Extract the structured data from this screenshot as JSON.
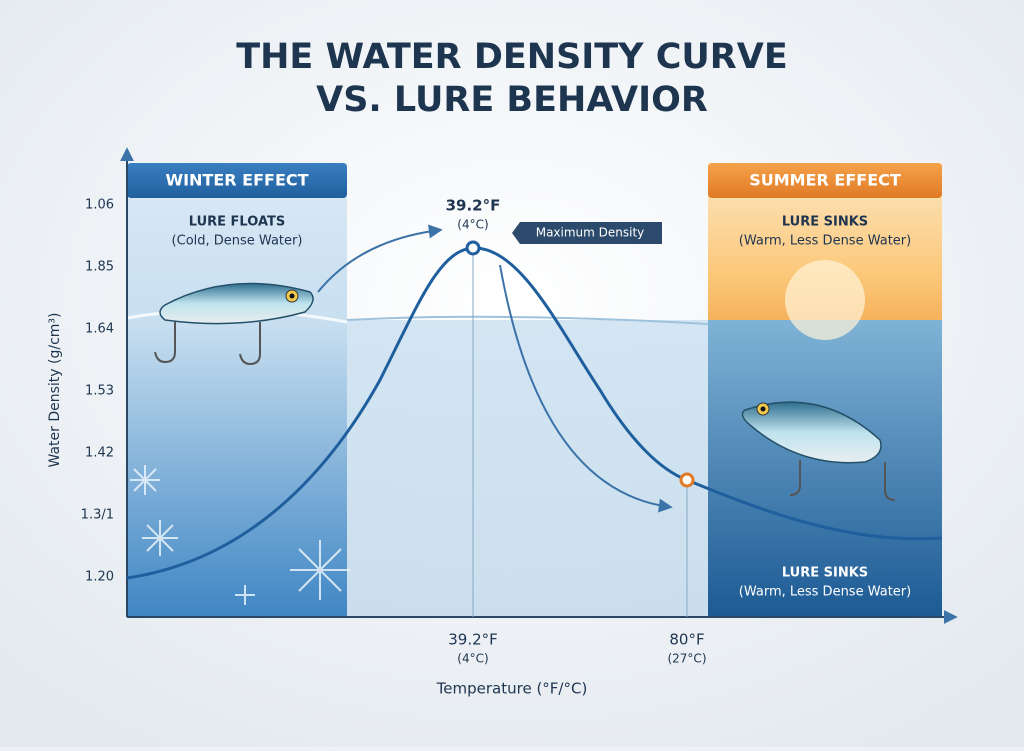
{
  "chart_data": {
    "type": "line",
    "title": [
      "THE WATER DENSITY CURVE",
      "VS. LURE BEHAVIOR"
    ],
    "ylabel": "Water Density (g/cm³)",
    "xlabel": "Temperature (°F/°C)",
    "y_labels": [
      "1.06",
      "1.85",
      "1.64",
      "1.53",
      "1.42",
      "1.3/1",
      "1.20"
    ],
    "x_labels": [
      {
        "label": "39.2°F",
        "sub": "(4°C)"
      },
      {
        "label": "80°F",
        "sub": "(27°C)"
      }
    ],
    "peak_annotation": {
      "label": "39.2°F",
      "sub": "(4°C)",
      "tag": "Maximum Density"
    },
    "panels": {
      "winter": {
        "header": "WINTER EFFECT",
        "title": "LURE FLOATS",
        "sub": "(Cold, Dense Water)"
      },
      "summer": {
        "header": "SUMMER EFFECT",
        "title": "LURE SINKS",
        "sub": "(Warm, Less Dense Water)",
        "bottom_title": "LURE SINKS",
        "bottom_sub": "(Warm, Less Dense Water)"
      }
    }
  }
}
